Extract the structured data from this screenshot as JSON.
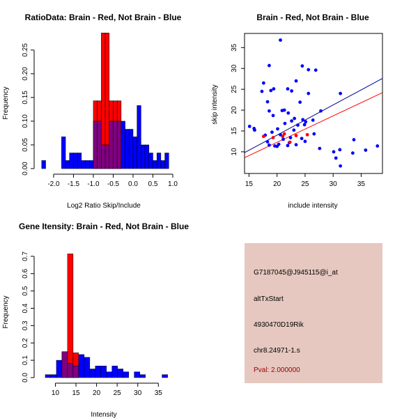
{
  "chart_data": [
    {
      "type": "bar",
      "subtype": "overlaid-histogram",
      "title": "RatioData: Brain - Red, Not Brain - Blue",
      "xlabel": "Log2 Ratio Skip/Include",
      "ylabel": "Frequency",
      "xlim": [
        -2.35,
        1.0
      ],
      "ylim": [
        0,
        0.285
      ],
      "xticks": [
        -2.0,
        -1.5,
        -1.0,
        -0.5,
        0.0,
        0.5,
        1.0
      ],
      "xtick_labels": [
        "-2.0",
        "-1.5",
        "-1.0",
        "-0.5",
        "0.0",
        "0.5",
        "1.0"
      ],
      "yticks": [
        0,
        0.05,
        0.1,
        0.15,
        0.2,
        0.25
      ],
      "ytick_labels": [
        "0.00",
        "0.05",
        "0.10",
        "0.15",
        "0.20",
        "0.25"
      ],
      "bin_width": 0.1,
      "series": [
        {
          "name": "Brain",
          "color": "#ff0000",
          "bins": [
            {
              "x0": -1.0,
              "value": 0.143
            },
            {
              "x0": -0.9,
              "value": 0.143
            },
            {
              "x0": -0.8,
              "value": 0.286
            },
            {
              "x0": -0.7,
              "value": 0.286
            },
            {
              "x0": -0.6,
              "value": 0.143
            },
            {
              "x0": -0.5,
              "value": 0.143
            },
            {
              "x0": -0.4,
              "value": 0.143
            }
          ]
        },
        {
          "name": "Not Brain",
          "color": "#0000ff",
          "bins": [
            {
              "x0": -2.3,
              "value": 0.017
            },
            {
              "x0": -1.8,
              "value": 0.067
            },
            {
              "x0": -1.7,
              "value": 0.017
            },
            {
              "x0": -1.6,
              "value": 0.033
            },
            {
              "x0": -1.5,
              "value": 0.033
            },
            {
              "x0": -1.4,
              "value": 0.033
            },
            {
              "x0": -1.3,
              "value": 0.017
            },
            {
              "x0": -1.2,
              "value": 0.017
            },
            {
              "x0": -1.1,
              "value": 0.017
            },
            {
              "x0": -1.0,
              "value": 0.1
            },
            {
              "x0": -0.9,
              "value": 0.1
            },
            {
              "x0": -0.8,
              "value": 0.05
            },
            {
              "x0": -0.7,
              "value": 0.05
            },
            {
              "x0": -0.6,
              "value": 0.1
            },
            {
              "x0": -0.5,
              "value": 0.1
            },
            {
              "x0": -0.4,
              "value": 0.1
            },
            {
              "x0": -0.3,
              "value": 0.1
            },
            {
              "x0": -0.2,
              "value": 0.083
            },
            {
              "x0": -0.1,
              "value": 0.083
            },
            {
              "x0": 0.0,
              "value": 0.067
            },
            {
              "x0": 0.1,
              "value": 0.133
            },
            {
              "x0": 0.2,
              "value": 0.05
            },
            {
              "x0": 0.3,
              "value": 0.05
            },
            {
              "x0": 0.4,
              "value": 0.033
            },
            {
              "x0": 0.5,
              "value": 0.017
            },
            {
              "x0": 0.6,
              "value": 0.033
            },
            {
              "x0": 0.7,
              "value": 0.017
            },
            {
              "x0": 0.8,
              "value": 0.033
            }
          ]
        }
      ],
      "overlap_color": "#800080"
    },
    {
      "type": "scatter",
      "title": "Brain - Red, Not Brain - Blue",
      "xlabel": "include intensity",
      "ylabel": "skip intensity",
      "xlim": [
        14.2,
        38.8
      ],
      "ylim": [
        4.8,
        38.4
      ],
      "xticks": [
        15,
        20,
        25,
        30,
        35
      ],
      "yticks": [
        10,
        15,
        20,
        25,
        30,
        35
      ],
      "series": [
        {
          "name": "Not Brain",
          "color": "#0000ff",
          "points": [
            [
              20.6,
              36.8
            ],
            [
              18.6,
              30.7
            ],
            [
              24.5,
              30.6
            ],
            [
              25.6,
              29.7
            ],
            [
              26.9,
              29.6
            ],
            [
              17.6,
              26.5
            ],
            [
              23.4,
              27.0
            ],
            [
              17.3,
              24.5
            ],
            [
              19.4,
              25.1
            ],
            [
              18.9,
              24.7
            ],
            [
              21.9,
              25.1
            ],
            [
              22.6,
              24.6
            ],
            [
              25.6,
              24.0
            ],
            [
              31.3,
              24.0
            ],
            [
              18.3,
              22.0
            ],
            [
              24.1,
              21.9
            ],
            [
              21.3,
              20.0
            ],
            [
              20.9,
              19.9
            ],
            [
              18.6,
              19.8
            ],
            [
              22.0,
              19.3
            ],
            [
              27.8,
              19.8
            ],
            [
              19.3,
              18.7
            ],
            [
              23.1,
              18.0
            ],
            [
              24.6,
              17.7
            ],
            [
              26.4,
              17.6
            ],
            [
              22.6,
              17.4
            ],
            [
              25.1,
              17.2
            ],
            [
              21.4,
              16.8
            ],
            [
              24.9,
              16.5
            ],
            [
              23.7,
              16.4
            ],
            [
              15.1,
              16.1
            ],
            [
              15.9,
              15.6
            ],
            [
              20.1,
              15.5
            ],
            [
              16.0,
              15.2
            ],
            [
              23.0,
              15.2
            ],
            [
              19.1,
              14.7
            ],
            [
              26.6,
              14.3
            ],
            [
              20.6,
              14.1
            ],
            [
              17.9,
              14.0
            ],
            [
              22.4,
              13.4
            ],
            [
              24.4,
              13.2
            ],
            [
              21.1,
              13.0
            ],
            [
              33.7,
              12.9
            ],
            [
              18.3,
              12.4
            ],
            [
              25.0,
              12.5
            ],
            [
              22.2,
              12.2
            ],
            [
              20.3,
              11.8
            ],
            [
              21.9,
              11.5
            ],
            [
              19.6,
              11.4
            ],
            [
              23.4,
              11.7
            ],
            [
              18.6,
              11.6
            ],
            [
              20.0,
              11.3
            ],
            [
              37.9,
              11.4
            ],
            [
              27.6,
              10.8
            ],
            [
              31.2,
              10.5
            ],
            [
              35.8,
              10.4
            ],
            [
              30.1,
              10.0
            ],
            [
              33.5,
              9.7
            ],
            [
              30.5,
              8.5
            ],
            [
              31.3,
              6.6
            ]
          ]
        },
        {
          "name": "Brain",
          "color": "#ff0000",
          "points": [
            [
              17.6,
              13.7
            ],
            [
              19.3,
              13.4
            ],
            [
              21.3,
              14.3
            ],
            [
              21.0,
              13.7
            ],
            [
              23.4,
              13.9
            ],
            [
              25.4,
              14.1
            ],
            [
              22.3,
              12.3
            ]
          ]
        }
      ],
      "fit_lines": [
        {
          "name": "Not Brain fit",
          "color": "#00008b",
          "from": [
            14.2,
            9.8
          ],
          "to": [
            38.8,
            27.6
          ]
        },
        {
          "name": "Brain fit",
          "color": "#ff0000",
          "from": [
            14.2,
            8.6
          ],
          "to": [
            38.8,
            24.2
          ]
        }
      ]
    },
    {
      "type": "bar",
      "subtype": "overlaid-histogram",
      "title": "Gene Itensity: Brain - Red, Not Brain - Blue",
      "xlabel": "Intensity",
      "ylabel": "Frequency",
      "xlim": [
        6.2,
        38.5
      ],
      "ylim": [
        0,
        0.78
      ],
      "xticks": [
        10,
        15,
        20,
        25,
        30,
        35
      ],
      "yticks": [
        0,
        0.1,
        0.2,
        0.3,
        0.4,
        0.5,
        0.6,
        0.7
      ],
      "ytick_labels": [
        "0.0",
        "0.1",
        "0.2",
        "0.3",
        "0.4",
        "0.5",
        "0.6",
        "0.7"
      ],
      "bin_width": 1.35,
      "series": [
        {
          "name": "Brain",
          "color": "#ff0000",
          "bins": [
            {
              "x0": 11.6,
              "value": 0.143
            },
            {
              "x0": 12.95,
              "value": 0.714
            },
            {
              "x0": 14.3,
              "value": 0.143
            }
          ]
        },
        {
          "name": "Not Brain",
          "color": "#0000ff",
          "bins": [
            {
              "x0": 7.55,
              "value": 0.017
            },
            {
              "x0": 8.9,
              "value": 0.017
            },
            {
              "x0": 10.25,
              "value": 0.1
            },
            {
              "x0": 11.6,
              "value": 0.15
            },
            {
              "x0": 12.95,
              "value": 0.083
            },
            {
              "x0": 14.3,
              "value": 0.067
            },
            {
              "x0": 15.65,
              "value": 0.133
            },
            {
              "x0": 17.0,
              "value": 0.117
            },
            {
              "x0": 18.35,
              "value": 0.05
            },
            {
              "x0": 19.7,
              "value": 0.067
            },
            {
              "x0": 21.05,
              "value": 0.067
            },
            {
              "x0": 22.4,
              "value": 0.033
            },
            {
              "x0": 23.75,
              "value": 0.067
            },
            {
              "x0": 25.1,
              "value": 0.05
            },
            {
              "x0": 26.45,
              "value": 0.033
            },
            {
              "x0": 29.15,
              "value": 0.033
            },
            {
              "x0": 30.5,
              "value": 0.017
            },
            {
              "x0": 35.9,
              "value": 0.017
            }
          ]
        }
      ],
      "overlap_color": "#800080"
    }
  ],
  "info_panel": {
    "probe_id": "G7187045@J945115@i_at",
    "event_type": "altTxStart",
    "gene_name": "4930470D19Rik",
    "location": "chr8.24971-1.s",
    "pval": "Pval: 2.000000",
    "pval_color": "#990000",
    "background_color": "#e6c8c0"
  }
}
